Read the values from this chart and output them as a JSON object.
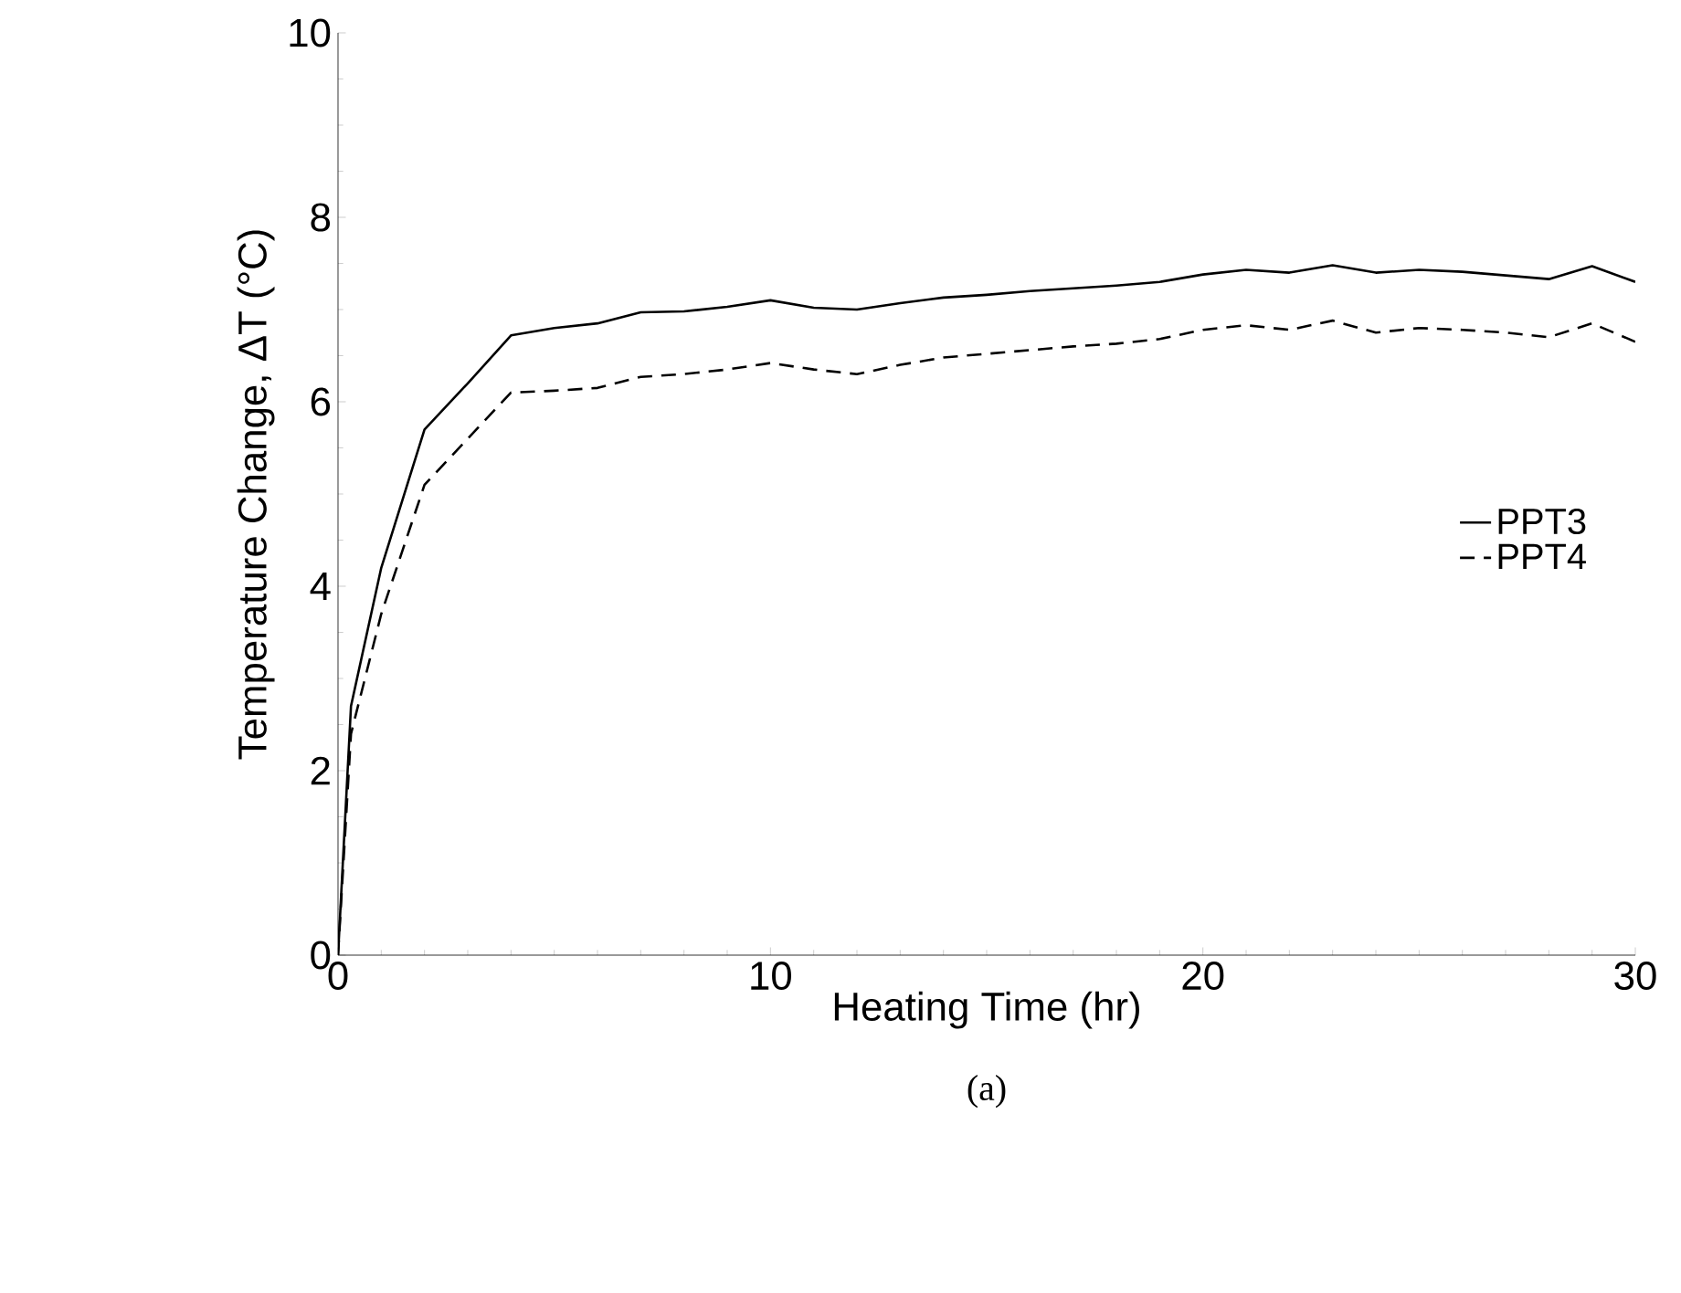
{
  "chart_data": {
    "type": "line",
    "xlabel": "Heating Time (hr)",
    "ylabel": "Temperature Change, ΔT (°C)",
    "annotations": [
      "(a)"
    ],
    "xlim": [
      0,
      30
    ],
    "ylim": [
      0,
      10
    ],
    "xticks": [
      0,
      10,
      20,
      30
    ],
    "yticks": [
      0,
      2,
      4,
      6,
      8,
      10
    ],
    "legend": "right",
    "grid": false,
    "marker": "none",
    "series": [
      {
        "name": "PPT3",
        "color": "#000000",
        "line_style": "solid",
        "x": [
          0,
          0.3,
          1,
          2,
          3,
          4,
          5,
          6,
          7,
          8,
          9,
          10,
          11,
          12,
          13,
          14,
          15,
          16,
          17,
          18,
          19,
          20,
          21,
          22,
          23,
          24,
          25,
          26,
          27,
          28,
          29,
          30
        ],
        "values": [
          0,
          2.7,
          4.2,
          5.7,
          6.2,
          6.72,
          6.8,
          6.85,
          6.97,
          6.98,
          7.03,
          7.1,
          7.02,
          7.0,
          7.07,
          7.13,
          7.16,
          7.2,
          7.23,
          7.26,
          7.3,
          7.38,
          7.43,
          7.4,
          7.48,
          7.4,
          7.43,
          7.41,
          7.37,
          7.33,
          7.47,
          7.3
        ]
      },
      {
        "name": "PPT4",
        "color": "#000000",
        "line_style": "dashed",
        "x": [
          0,
          0.3,
          1,
          2,
          3,
          4,
          5,
          6,
          7,
          8,
          9,
          10,
          11,
          12,
          13,
          14,
          15,
          16,
          17,
          18,
          19,
          20,
          21,
          22,
          23,
          24,
          25,
          26,
          27,
          28,
          29,
          30
        ],
        "values": [
          0,
          2.4,
          3.7,
          5.1,
          5.6,
          6.1,
          6.12,
          6.15,
          6.27,
          6.3,
          6.35,
          6.42,
          6.35,
          6.3,
          6.4,
          6.48,
          6.52,
          6.56,
          6.6,
          6.63,
          6.68,
          6.78,
          6.83,
          6.78,
          6.88,
          6.75,
          6.8,
          6.78,
          6.75,
          6.7,
          6.85,
          6.65
        ]
      }
    ]
  }
}
